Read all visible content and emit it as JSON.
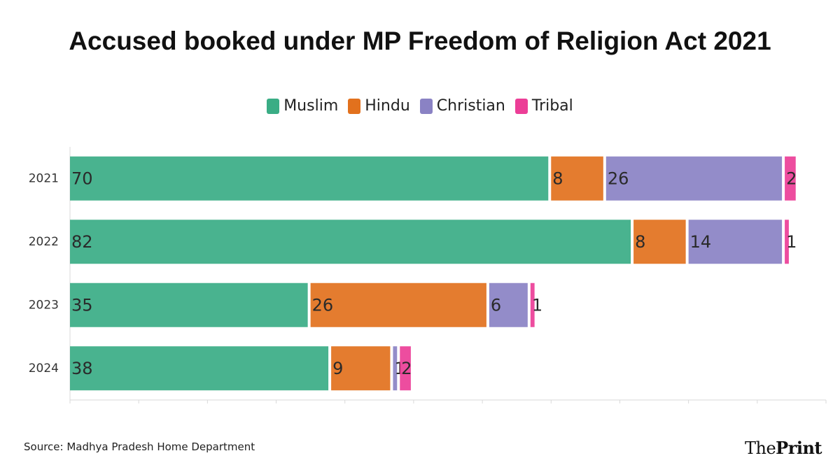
{
  "title": "Accused booked under MP Freedom of Religion Act 2021",
  "source": "Source: Madhya Pradesh Home Department",
  "brand": {
    "prefix": "The",
    "name": "Print"
  },
  "chart_data": {
    "type": "bar",
    "orientation": "horizontal",
    "stacked": true,
    "categories": [
      "2021",
      "2022",
      "2023",
      "2024"
    ],
    "series": [
      {
        "name": "Muslim",
        "color": "#3aad85",
        "values": [
          70,
          82,
          35,
          38
        ]
      },
      {
        "name": "Hindu",
        "color": "#e2711d",
        "values": [
          8,
          8,
          26,
          9
        ]
      },
      {
        "name": "Christian",
        "color": "#8a82c4",
        "values": [
          26,
          14,
          6,
          1
        ]
      },
      {
        "name": "Tribal",
        "color": "#ec3e97",
        "values": [
          2,
          1,
          1,
          2
        ]
      }
    ],
    "xlim": [
      0,
      110
    ],
    "legend": "top-center",
    "grid": false,
    "data_labels": true
  }
}
